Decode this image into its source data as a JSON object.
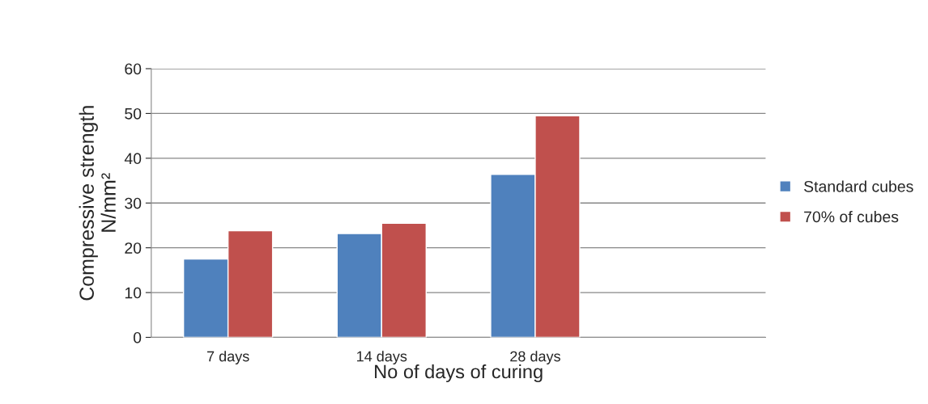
{
  "chart_data": {
    "type": "bar",
    "xlabel": "No of days of curing",
    "ylabel": "Compressive strength\nN/mm²",
    "categories": [
      "7 days",
      "14 days",
      "28 days",
      null
    ],
    "series": [
      {
        "name": "Standard cubes",
        "color": "#4f81bd",
        "values": [
          17.5,
          23.2,
          36.4,
          null
        ]
      },
      {
        "name": "70% of cubes",
        "color": "#c0504d",
        "values": [
          23.8,
          25.5,
          49.5,
          null
        ]
      }
    ],
    "ylim": [
      0,
      60
    ],
    "yticks": [
      0,
      10,
      20,
      30,
      40,
      50,
      60
    ],
    "grid": "y",
    "legend": "right"
  }
}
